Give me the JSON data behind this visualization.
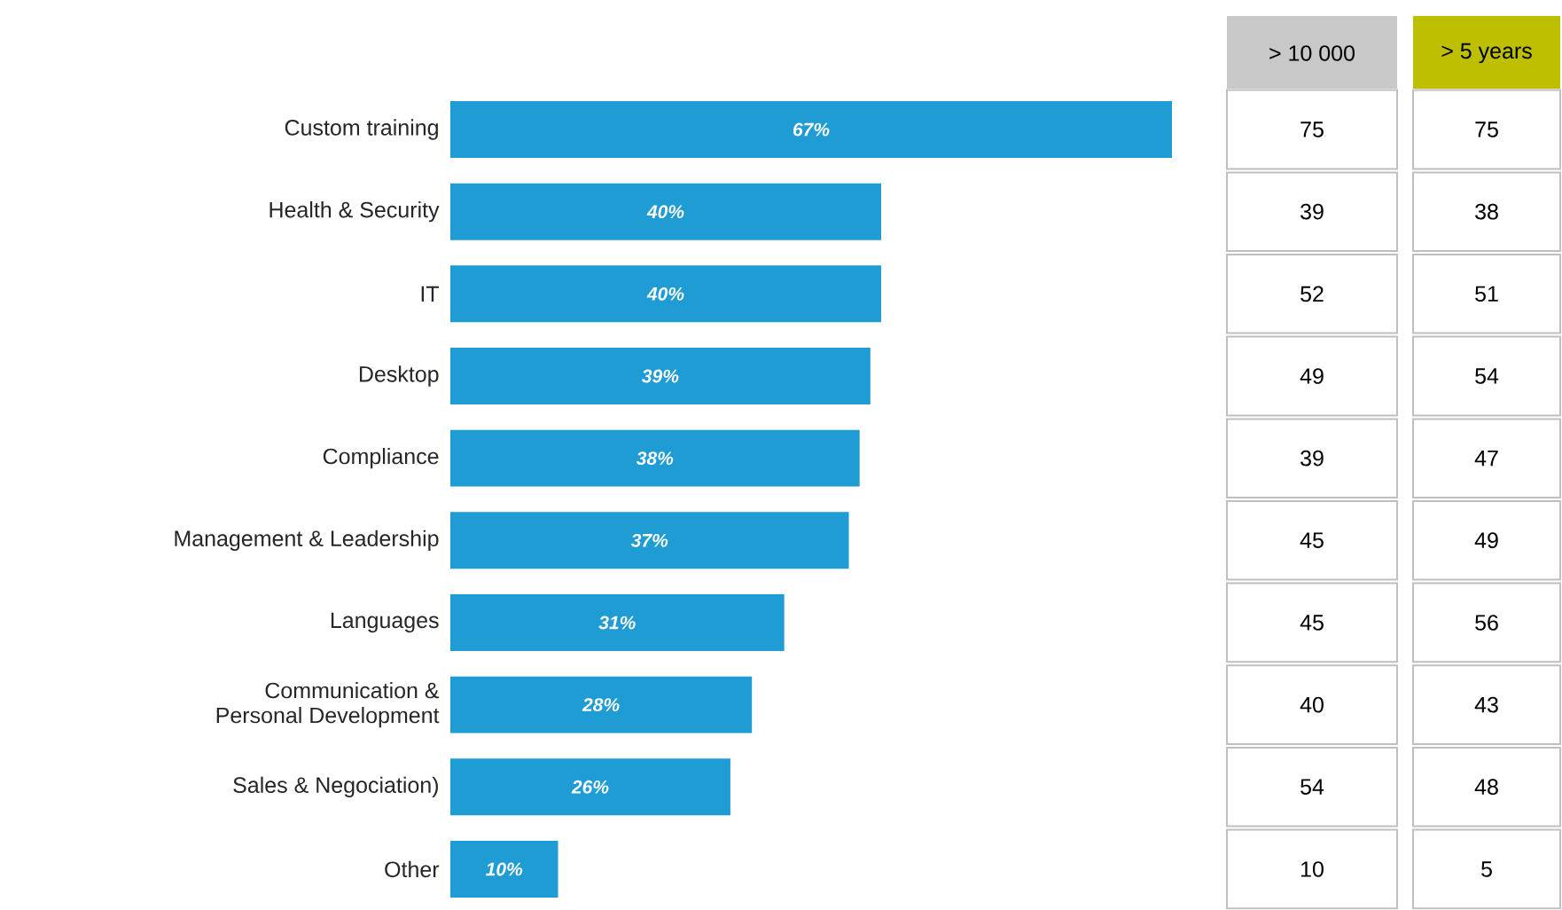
{
  "chart_data": [
    {
      "type": "bar",
      "orientation": "horizontal",
      "categories": [
        "Custom training",
        "Health & Security",
        "IT",
        "Desktop",
        "Compliance",
        "Management & Leadership",
        "Languages",
        "Communication & Personal Development",
        "Sales & Negociation)",
        "Other"
      ],
      "series": [
        {
          "color": "#1e9cd3",
          "values": [
            67,
            40,
            40,
            39,
            38,
            37,
            31,
            28,
            26,
            10
          ],
          "value_labels": [
            "67%",
            "40%",
            "40%",
            "39%",
            "38%",
            "37%",
            "31%",
            "28%",
            "26%",
            "10%"
          ]
        }
      ]
    },
    {
      "type": "heatmap",
      "categories": [
        "> 10 000",
        "> 5 years"
      ],
      "colors": [
        "#c8c8c8",
        "#bdbf00"
      ],
      "data_labels": true,
      "y_categories": [
        null,
        null,
        null,
        null,
        null,
        null,
        null,
        null,
        null,
        null
      ],
      "cells": [
        [
          75,
          75
        ],
        [
          39,
          38
        ],
        [
          52,
          51
        ],
        [
          49,
          54
        ],
        [
          39,
          47
        ],
        [
          45,
          49
        ],
        [
          45,
          56
        ],
        [
          40,
          43
        ],
        [
          54,
          48
        ],
        [
          10,
          5
        ]
      ]
    }
  ]
}
